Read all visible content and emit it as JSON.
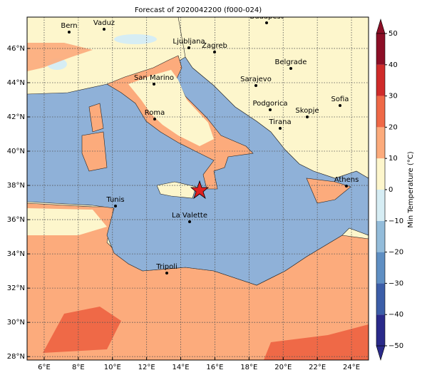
{
  "map": {
    "title": "Forecast of 2020042200 (f000-024)",
    "xlim": [
      5,
      25
    ],
    "ylim": [
      27.8,
      47.83
    ],
    "xticks": [
      {
        "value": 6,
        "label": "6°E"
      },
      {
        "value": 8,
        "label": "8°E"
      },
      {
        "value": 10,
        "label": "10°E"
      },
      {
        "value": 12,
        "label": "12°E"
      },
      {
        "value": 14,
        "label": "14°E"
      },
      {
        "value": 16,
        "label": "16°E"
      },
      {
        "value": 18,
        "label": "18°E"
      },
      {
        "value": 20,
        "label": "20°E"
      },
      {
        "value": 22,
        "label": "22°E"
      },
      {
        "value": 24,
        "label": "24°E"
      }
    ],
    "yticks": [
      {
        "value": 28,
        "label": "28°N"
      },
      {
        "value": 30,
        "label": "30°N"
      },
      {
        "value": 32,
        "label": "32°N"
      },
      {
        "value": 34,
        "label": "34°N"
      },
      {
        "value": 36,
        "label": "36°N"
      },
      {
        "value": 38,
        "label": "38°N"
      },
      {
        "value": 40,
        "label": "40°N"
      },
      {
        "value": 42,
        "label": "42°N"
      },
      {
        "value": 44,
        "label": "44°N"
      },
      {
        "value": 46,
        "label": "46°N"
      }
    ],
    "grid": true,
    "cities": [
      "Bern",
      "Vaduz",
      "Budapest",
      "Ljubljana",
      "Zagreb",
      "Belgrade",
      "San Marino",
      "Sarajevo",
      "Sofia",
      "Podgorica",
      "Skopje",
      "Roma",
      "Tirana",
      "Athens",
      "Tunis",
      "La Valette",
      "Tripoli"
    ],
    "colorbar": {
      "label": "Min Temperature (°C)",
      "lim": [
        -50,
        50
      ],
      "ticks": [
        {
          "value": -50,
          "label": "−50"
        },
        {
          "value": -40,
          "label": "−40"
        },
        {
          "value": -30,
          "label": "−30"
        },
        {
          "value": -20,
          "label": "−20"
        },
        {
          "value": -10,
          "label": "−10"
        },
        0,
        10,
        20,
        30,
        40,
        50
      ],
      "colors": [
        "#2a2a8a",
        "#3c5ea8",
        "#5f8fc3",
        "#93bcda",
        "#d6edf4",
        "#fdf6cc",
        "#fcab7c",
        "#ef6947",
        "#cf2b2a",
        "#8c0e26"
      ]
    }
  }
}
